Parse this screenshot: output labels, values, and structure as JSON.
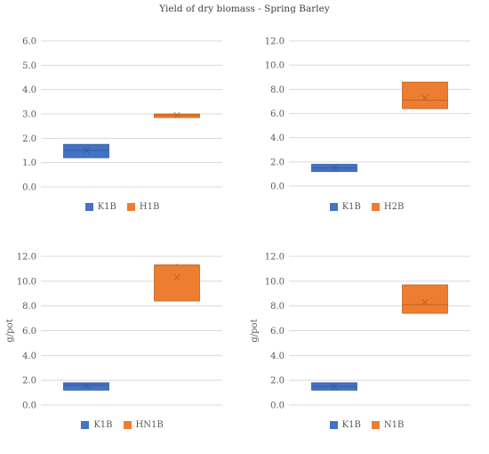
{
  "title": "Yield of dry biomass - Spring Barley",
  "chart_data": [
    {
      "type": "box",
      "ylabel": "",
      "ylim": [
        0,
        6
      ],
      "yticks": [
        "0.0",
        "1.0",
        "2.0",
        "3.0",
        "4.0",
        "5.0",
        "6.0"
      ],
      "grid": true,
      "legend": "bottom",
      "series": [
        {
          "name": "K1B",
          "color": "#4472C4",
          "q1": 1.2,
          "median": 1.5,
          "q3": 1.75,
          "mean": 1.5,
          "max": 1.75
        },
        {
          "name": "H1B",
          "color": "#ED7D31",
          "q1": 2.85,
          "median": 2.95,
          "q3": 3.0,
          "mean": 2.95,
          "max": 3.0
        }
      ]
    },
    {
      "type": "box",
      "ylabel": "",
      "ylim": [
        0,
        12
      ],
      "yticks": [
        "0.0",
        "2.0",
        "4.0",
        "6.0",
        "8.0",
        "10.0",
        "12.0"
      ],
      "grid": true,
      "legend": "bottom",
      "series": [
        {
          "name": "K1B",
          "color": "#4472C4",
          "q1": 1.2,
          "median": 1.5,
          "q3": 1.8,
          "mean": 1.5,
          "max": 1.8
        },
        {
          "name": "H2B",
          "color": "#ED7D31",
          "q1": 6.4,
          "median": 7.1,
          "q3": 8.6,
          "mean": 7.3,
          "max": 8.6
        }
      ]
    },
    {
      "type": "box",
      "ylabel": "g/pot",
      "ylim": [
        0,
        12
      ],
      "yticks": [
        "0.0",
        "2.0",
        "4.0",
        "6.0",
        "8.0",
        "10.0",
        "12.0"
      ],
      "grid": true,
      "legend": "bottom",
      "series": [
        {
          "name": "K1B",
          "color": "#4472C4",
          "q1": 1.2,
          "median": 1.6,
          "q3": 1.8,
          "mean": 1.55,
          "max": 1.8
        },
        {
          "name": "HN1B",
          "color": "#ED7D31",
          "q1": 8.4,
          "median": 11.3,
          "q3": 11.3,
          "mean": 10.3,
          "max": 11.4
        }
      ]
    },
    {
      "type": "box",
      "ylabel": "g/pot",
      "ylim": [
        0,
        12
      ],
      "yticks": [
        "0.0",
        "2.0",
        "4.0",
        "6.0",
        "8.0",
        "10.0",
        "12.0"
      ],
      "grid": true,
      "legend": "bottom",
      "series": [
        {
          "name": "K1B",
          "color": "#4472C4",
          "q1": 1.2,
          "median": 1.5,
          "q3": 1.8,
          "mean": 1.5,
          "max": 1.8
        },
        {
          "name": "N1B",
          "color": "#ED7D31",
          "q1": 7.4,
          "median": 8.1,
          "q3": 9.7,
          "mean": 8.3,
          "max": 9.7
        }
      ]
    }
  ]
}
